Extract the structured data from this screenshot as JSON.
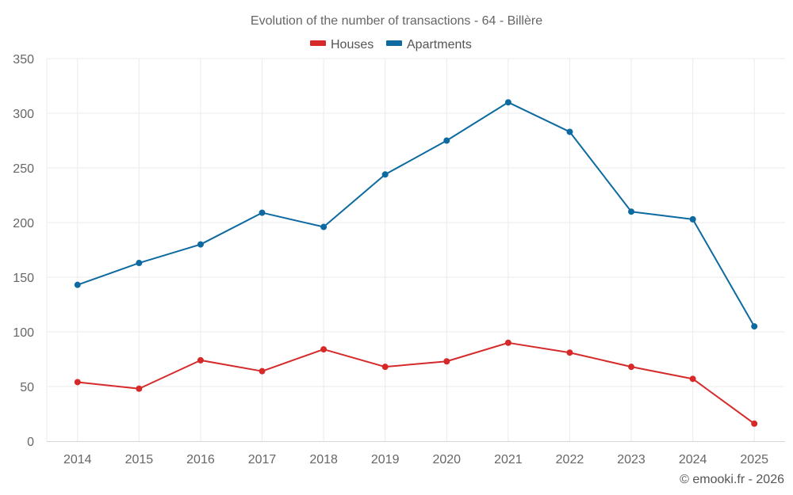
{
  "chart_data": {
    "type": "line",
    "title": "Evolution of the number of transactions - 64 - Billère",
    "xlabel": "",
    "ylabel": "",
    "categories": [
      "2014",
      "2015",
      "2016",
      "2017",
      "2018",
      "2019",
      "2020",
      "2021",
      "2022",
      "2023",
      "2024",
      "2025"
    ],
    "ylim": [
      0,
      350
    ],
    "yticks": [
      0,
      50,
      100,
      150,
      200,
      250,
      300,
      350
    ],
    "ytick_labels": [
      "0",
      "50",
      "100",
      "150",
      "200",
      "250",
      "300",
      "350"
    ],
    "grid": true,
    "legend_position": "top-center",
    "series": [
      {
        "name": "Houses",
        "color": "#d62a2a",
        "values": [
          54,
          48,
          74,
          64,
          84,
          68,
          73,
          90,
          81,
          68,
          57,
          16
        ]
      },
      {
        "name": "Apartments",
        "color": "#0d6aa0",
        "values": [
          143,
          163,
          180,
          209,
          196,
          244,
          275,
          310,
          283,
          210,
          203,
          105
        ]
      }
    ]
  },
  "credit": "© emooki.fr - 2026"
}
